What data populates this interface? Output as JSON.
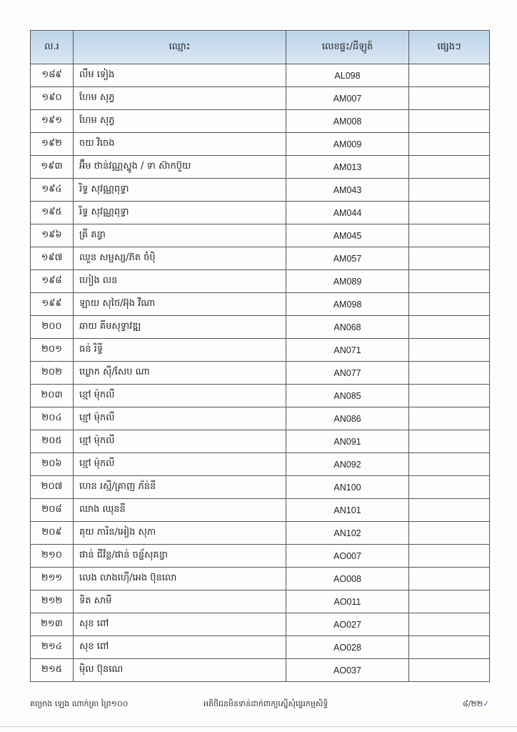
{
  "table": {
    "headers": [
      "ល.រ",
      "ឈ្មោះ",
      "លេខផ្ទះ/ដីឡូត៍",
      "ផ្សេងៗ"
    ],
    "rows": [
      {
        "no": "១៨៩",
        "name": "លឹម ទៀង",
        "code": "AL098",
        "other": ""
      },
      {
        "no": "១៩០",
        "name": "ហែម សុភ្វ",
        "code": "AM007",
        "other": ""
      },
      {
        "no": "១៩១",
        "name": "ហែម សុភ្វ",
        "code": "AM008",
        "other": ""
      },
      {
        "no": "១៩២",
        "name": "ចយ វិចេង",
        "code": "AM009",
        "other": ""
      },
      {
        "no": "១៩៣",
        "name": "អ៊ឹម ថាន់វណ្ណស្នូង / ទា ស៊ាកប៊ួយ",
        "code": "AM013",
        "other": ""
      },
      {
        "no": "១៩៤",
        "name": "រិទ្ធ សុវណ្ណពុទ្ធា",
        "code": "AM043",
        "other": ""
      },
      {
        "no": "១៩៥",
        "name": "រិទ្ធ សុវណ្ណពុទ្ធា",
        "code": "AM044",
        "other": ""
      },
      {
        "no": "១៩៦",
        "name": "គ្រី គន្ធា",
        "code": "AM045",
        "other": ""
      },
      {
        "no": "១៩៧",
        "name": "ឈួន សម្ផស្ស/ភ៊ត ចំប៉ិ",
        "code": "AM057",
        "other": ""
      },
      {
        "no": "១៩៨",
        "name": "ហៀង លន",
        "code": "AM089",
        "other": ""
      },
      {
        "no": "១៩៩",
        "name": "ឡាយ សុថៃ/អ៊ុង វីណា",
        "code": "AM098",
        "other": ""
      },
      {
        "no": "២០០",
        "name": "ឆាយ គីមសុទ្ធាវឌ្ឍ",
        "code": "AN068",
        "other": ""
      },
      {
        "no": "២០១",
        "name": "ធន់ រិទ្ធី",
        "code": "AN071",
        "other": ""
      },
      {
        "no": "២០២",
        "name": "ឃ្លោក ស៊ី/សែប ណា",
        "code": "AN077",
        "other": ""
      },
      {
        "no": "២០៣",
        "name": "ខ្មៅ ម៉ុកលី",
        "code": "AN085",
        "other": ""
      },
      {
        "no": "២០៤",
        "name": "ខ្មៅ ម៉ុកលី",
        "code": "AN086",
        "other": ""
      },
      {
        "no": "២០៥",
        "name": "ខ្មៅ ម៉ុកលី",
        "code": "AN091",
        "other": ""
      },
      {
        "no": "២០៦",
        "name": "ខ្មៅ ម៉ុកលី",
        "code": "AN092",
        "other": ""
      },
      {
        "no": "២០៧",
        "name": "ហេន រស្មី/គ្រាញ ភ័ន់នី",
        "code": "AN100",
        "other": ""
      },
      {
        "no": "២០៨",
        "name": "ឈាង ឈុននី",
        "code": "AN101",
        "other": ""
      },
      {
        "no": "២០៩",
        "name": "គុយ ភារិន/អៀង សុភា",
        "code": "AN102",
        "other": ""
      },
      {
        "no": "២១០",
        "name": "ផាន់ ជីវ័ន្ត/ផាន់ ចន្ទ័សុគន្ធា",
        "code": "AO007",
        "other": ""
      },
      {
        "no": "២១១",
        "name": "លេង លាងហ៊ើ/អេង ប៊ុនលោ",
        "code": "AO008",
        "other": ""
      },
      {
        "no": "២១២",
        "name": "ទិត សាមី",
        "code": "AO011",
        "other": ""
      },
      {
        "no": "២១៣",
        "name": "សុខ ពៅ",
        "code": "AO027",
        "other": ""
      },
      {
        "no": "២១៤",
        "name": "សុខ ពៅ",
        "code": "AO028",
        "other": ""
      },
      {
        "no": "២១៥",
        "name": "ម៉ិល ប៊ុនណេ",
        "code": "AO037",
        "other": ""
      }
    ]
  },
  "footer": {
    "left": "គម្រោង ឡេង ណាក់គ្រា ព្រៃ១០០",
    "center": "អតិថិជនមិនទាន់ដាក់ពាក្យស្នើសុំផ្ទេរកម្មសិទ្ធិ",
    "page": "៨/២២",
    "tick": "✓"
  }
}
